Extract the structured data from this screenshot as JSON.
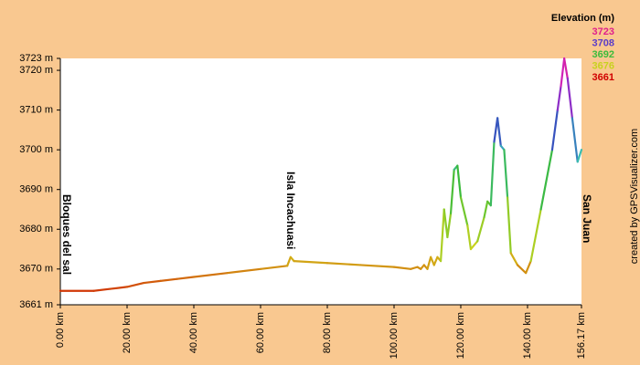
{
  "chart_data": {
    "type": "line",
    "legend": {
      "title": "Elevation (m)",
      "entries": [
        {
          "value": 3723,
          "color": "#e0208c"
        },
        {
          "value": 3708,
          "color": "#5a3cc8"
        },
        {
          "value": 3692,
          "color": "#3cbc3c"
        },
        {
          "value": 3676,
          "color": "#c8d21e"
        },
        {
          "value": 3661,
          "color": "#d00000"
        }
      ]
    },
    "annotations": [
      "Bloques del sal",
      "Isla Incachuasi",
      "San Juan"
    ],
    "credit": "created by GPSVisualizer.com",
    "series": [
      {
        "x": [
          0,
          10,
          15,
          20,
          25,
          30,
          35,
          40,
          50,
          60,
          68,
          69,
          70,
          80,
          90,
          100,
          105,
          107,
          108,
          109,
          110,
          111,
          112,
          113,
          114,
          115,
          116,
          117,
          118,
          119,
          120,
          122,
          123,
          125,
          127,
          128,
          129,
          130,
          131,
          132,
          133,
          134,
          135,
          137,
          139.5,
          141,
          144,
          147.4,
          149,
          150,
          151,
          152,
          153.4,
          155,
          156.17
        ],
        "values": [
          3664.5,
          3664.5,
          3665,
          3665.5,
          3666.5,
          3667,
          3667.5,
          3668,
          3669,
          3670,
          3670.8,
          3673,
          3672,
          3671.5,
          3671,
          3670.5,
          3670,
          3670.5,
          3670,
          3671,
          3670,
          3673,
          3671,
          3673,
          3672,
          3685,
          3678,
          3684,
          3695,
          3696,
          3688,
          3681,
          3675,
          3677,
          3683,
          3687,
          3686,
          3702,
          3708,
          3701,
          3700,
          3688,
          3674,
          3671,
          3669,
          3672,
          3685,
          3700,
          3710,
          3716,
          3723,
          3718,
          3708,
          3697,
          3700
        ]
      }
    ],
    "xlim": [
      0,
      156.17
    ],
    "xticks": [
      {
        "value": 0,
        "label": "0.00 km"
      },
      {
        "value": 20,
        "label": "20.00 km"
      },
      {
        "value": 40,
        "label": "40.00 km"
      },
      {
        "value": 60,
        "label": "60.00 km"
      },
      {
        "value": 80,
        "label": "80.00 km"
      },
      {
        "value": 100,
        "label": "100.00 km"
      },
      {
        "value": 120,
        "label": "120.00 km"
      },
      {
        "value": 140,
        "label": "140.00 km"
      },
      {
        "value": 156.17,
        "label": "156.17 km"
      }
    ],
    "ylim": [
      3661,
      3723
    ],
    "yticks": [
      {
        "value": 3661,
        "label": "3661 m"
      },
      {
        "value": 3670,
        "label": "3670 m"
      },
      {
        "value": 3680,
        "label": "3680 m"
      },
      {
        "value": 3690,
        "label": "3690 m"
      },
      {
        "value": 3700,
        "label": "3700 m"
      },
      {
        "value": 3710,
        "label": "3710 m"
      },
      {
        "value": 3720,
        "label": "3720 m"
      },
      {
        "value": 3723,
        "label": "3723 m"
      }
    ]
  }
}
